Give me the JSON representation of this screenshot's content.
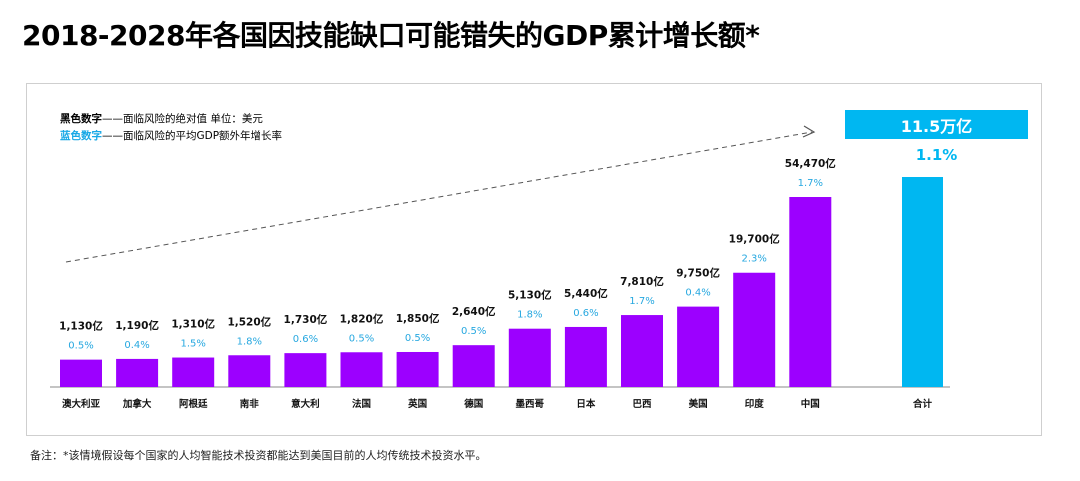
{
  "title": "2018-2028年各国因技能缺口可能错失的GDP累计增长额*",
  "legend": {
    "black_key": "黑色数字",
    "black_desc": "——面临风险的绝对值  单位：美元",
    "blue_key": "蓝色数字",
    "blue_desc": "——面临风险的平均GDP额外年增长率"
  },
  "footnote": "备注：*该情境假设每个国家的人均智能技术投资都能达到美国目前的人均传统技术投资水平。",
  "colors": {
    "bar": "#9c00ff",
    "total": "#00b7f1",
    "pct": "#27a8e0"
  },
  "total": {
    "label": "合计",
    "value_label": "11.5万亿",
    "pct_label": "1.1%"
  },
  "chart_data": {
    "type": "bar",
    "title": "2018-2028年各国因技能缺口可能错失的GDP累计增长额*",
    "unit": "亿美元",
    "categories": [
      "澳大利亚",
      "加拿大",
      "阿根廷",
      "南非",
      "意大利",
      "法国",
      "英国",
      "德国",
      "墨西哥",
      "日本",
      "巴西",
      "美国",
      "印度",
      "中国"
    ],
    "values": [
      1130,
      1190,
      1310,
      1520,
      1730,
      1820,
      1850,
      2640,
      5130,
      5440,
      7810,
      9750,
      19700,
      54470
    ],
    "value_labels": [
      "1,130亿",
      "1,190亿",
      "1,310亿",
      "1,520亿",
      "1,730亿",
      "1,820亿",
      "1,850亿",
      "2,640亿",
      "5,130亿",
      "5,440亿",
      "7,810亿",
      "9,750亿",
      "19,700亿",
      "54,470亿"
    ],
    "growth_labels": [
      "0.5%",
      "0.4%",
      "1.5%",
      "1.8%",
      "0.6%",
      "0.5%",
      "0.5%",
      "0.5%",
      "1.8%",
      "0.6%",
      "1.7%",
      "0.4%",
      "2.3%",
      "1.7%"
    ],
    "total_label": "合计",
    "total_value": 115000,
    "xlabel": "",
    "ylabel": ""
  }
}
